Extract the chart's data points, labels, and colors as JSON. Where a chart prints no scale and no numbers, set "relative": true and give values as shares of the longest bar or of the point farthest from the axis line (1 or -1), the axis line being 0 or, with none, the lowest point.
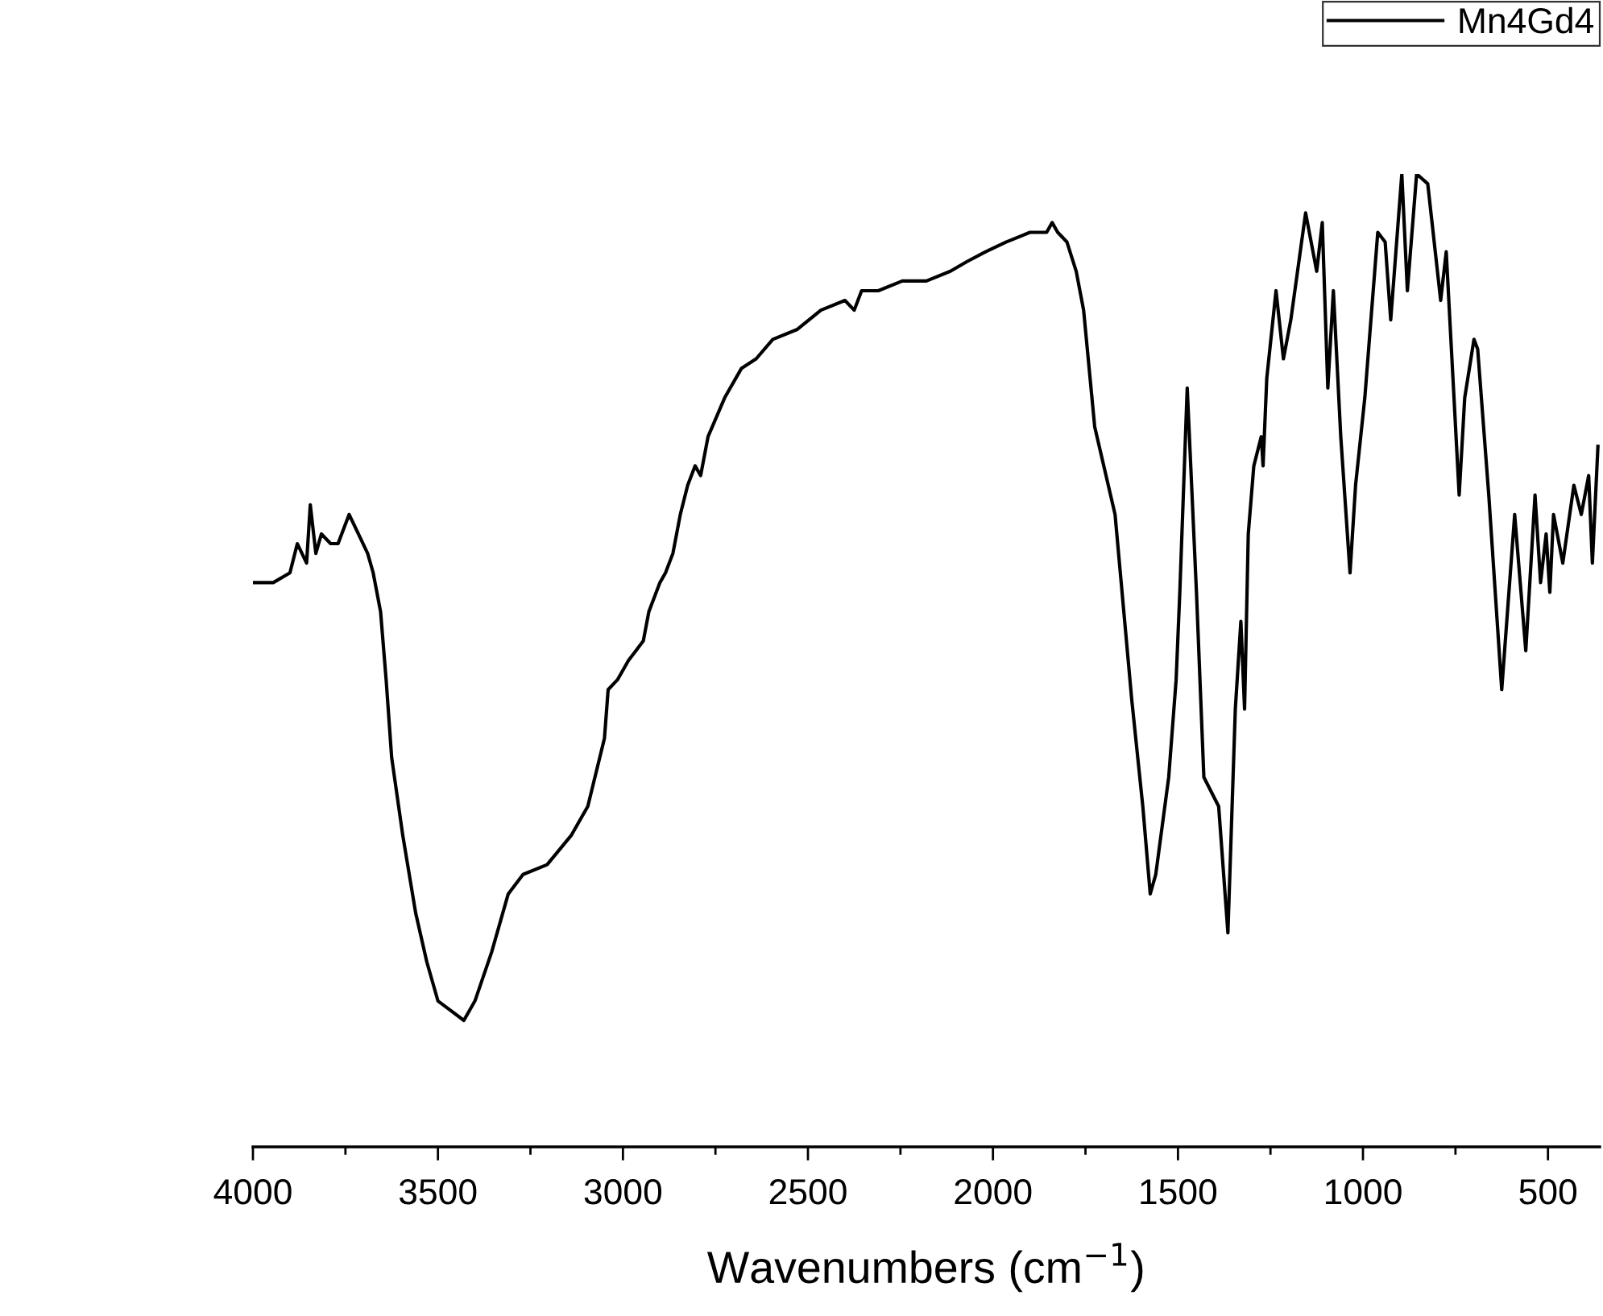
{
  "chart_data": {
    "type": "line",
    "relative": true,
    "xlabel": "Wavenumbers (cm$^{−1}$)",
    "xlim": [
      4000,
      360
    ],
    "xticks": [
      4000,
      {
        "value": 3750,
        "label": null
      },
      3500,
      {
        "value": 3250,
        "label": null
      },
      3000,
      {
        "value": 2750,
        "label": null
      },
      2500,
      {
        "value": 2250,
        "label": null
      },
      2000,
      {
        "value": 1750,
        "label": null
      },
      1500,
      {
        "value": 1250,
        "label": null
      },
      1000,
      {
        "value": 750,
        "label": null
      },
      500
    ],
    "legend": "top right",
    "grid": false,
    "marker": "none",
    "line_style": "solid",
    "x": [
      4000,
      3945,
      3900,
      3880,
      3855,
      3845,
      3830,
      3815,
      3790,
      3770,
      3740,
      3715,
      3690,
      3675,
      3655,
      3640,
      3625,
      3595,
      3560,
      3530,
      3500,
      3465,
      3430,
      3400,
      3355,
      3310,
      3270,
      3205,
      3140,
      3095,
      3050,
      3040,
      3015,
      2985,
      2965,
      2945,
      2930,
      2900,
      2885,
      2865,
      2845,
      2825,
      2805,
      2790,
      2770,
      2725,
      2680,
      2640,
      2595,
      2530,
      2465,
      2400,
      2375,
      2355,
      2310,
      2245,
      2180,
      2115,
      2070,
      2020,
      1965,
      1900,
      1855,
      1840,
      1825,
      1800,
      1775,
      1755,
      1725,
      1670,
      1625,
      1595,
      1575,
      1560,
      1525,
      1505,
      1495,
      1475,
      1450,
      1430,
      1390,
      1365,
      1345,
      1330,
      1320,
      1310,
      1295,
      1275,
      1270,
      1260,
      1235,
      1215,
      1195,
      1155,
      1125,
      1110,
      1095,
      1080,
      1060,
      1035,
      1020,
      995,
      960,
      940,
      925,
      895,
      880,
      855,
      825,
      790,
      775,
      740,
      725,
      700,
      690,
      660,
      625,
      590,
      560,
      535,
      520,
      505,
      495,
      485,
      460,
      430,
      410,
      390,
      380,
      365
    ],
    "series": [
      {
        "name": "Mn4Gd4",
        "color": "#000000",
        "values": [
          0.58,
          0.58,
          0.59,
          0.62,
          0.6,
          0.66,
          0.61,
          0.63,
          0.62,
          0.62,
          0.65,
          0.63,
          0.61,
          0.59,
          0.55,
          0.48,
          0.4,
          0.32,
          0.24,
          0.19,
          0.15,
          0.14,
          0.13,
          0.15,
          0.2,
          0.26,
          0.28,
          0.29,
          0.32,
          0.35,
          0.42,
          0.47,
          0.48,
          0.5,
          0.51,
          0.52,
          0.55,
          0.58,
          0.59,
          0.61,
          0.65,
          0.68,
          0.7,
          0.69,
          0.73,
          0.77,
          0.8,
          0.81,
          0.83,
          0.84,
          0.86,
          0.87,
          0.86,
          0.88,
          0.88,
          0.89,
          0.89,
          0.9,
          0.91,
          0.92,
          0.93,
          0.94,
          0.94,
          0.95,
          0.94,
          0.93,
          0.9,
          0.86,
          0.74,
          0.65,
          0.46,
          0.35,
          0.26,
          0.28,
          0.38,
          0.48,
          0.57,
          0.78,
          0.57,
          0.38,
          0.35,
          0.22,
          0.45,
          0.54,
          0.45,
          0.63,
          0.7,
          0.73,
          0.7,
          0.79,
          0.88,
          0.81,
          0.85,
          0.96,
          0.9,
          0.95,
          0.78,
          0.88,
          0.73,
          0.59,
          0.68,
          0.77,
          0.94,
          0.93,
          0.85,
          1.0,
          0.88,
          1.0,
          0.99,
          0.87,
          0.92,
          0.67,
          0.77,
          0.83,
          0.82,
          0.67,
          0.47,
          0.65,
          0.51,
          0.67,
          0.58,
          0.63,
          0.57,
          0.65,
          0.6,
          0.68,
          0.65,
          0.69,
          0.6,
          0.72
        ]
      }
    ]
  }
}
